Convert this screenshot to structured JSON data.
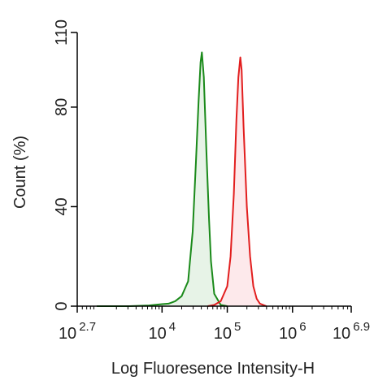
{
  "chart_data": {
    "type": "area",
    "title": "",
    "xlabel": "Log Fluoresence Intensity-H",
    "ylabel": "Count  (%)",
    "x_scale": "log",
    "xlim": [
      501.19,
      7943282.35
    ],
    "ylim": [
      0,
      110
    ],
    "x_ticks": [
      {
        "value": 501.19,
        "base": "10",
        "exp": "2.7"
      },
      {
        "value": 10000,
        "base": "10",
        "exp": "4"
      },
      {
        "value": 100000,
        "base": "10",
        "exp": "5"
      },
      {
        "value": 1000000,
        "base": "10",
        "exp": "6"
      },
      {
        "value": 7943282.35,
        "base": "10",
        "exp": "6.9"
      }
    ],
    "y_ticks": [
      "0",
      "40",
      "80",
      "110"
    ],
    "grid": false,
    "legend": "none",
    "series": [
      {
        "color": "#1a8a1a",
        "fill": "#e3f1e3",
        "points": [
          [
            1000,
            0
          ],
          [
            3162,
            0
          ],
          [
            6310,
            0.3
          ],
          [
            10000,
            0.8
          ],
          [
            12589,
            1
          ],
          [
            15849,
            2
          ],
          [
            19953,
            4
          ],
          [
            25119,
            10
          ],
          [
            29512,
            30
          ],
          [
            33113,
            58
          ],
          [
            36308,
            82
          ],
          [
            38905,
            98
          ],
          [
            40738,
            102
          ],
          [
            43652,
            92
          ],
          [
            47863,
            62
          ],
          [
            52481,
            35
          ],
          [
            56234,
            18
          ],
          [
            63096,
            5
          ],
          [
            79433,
            0.5
          ],
          [
            100000,
            0
          ]
        ]
      },
      {
        "color": "#e21e1e",
        "fill": "#fde5e7",
        "points": [
          [
            50119,
            0
          ],
          [
            63096,
            0.5
          ],
          [
            79433,
            2
          ],
          [
            100000,
            8
          ],
          [
            112202,
            20
          ],
          [
            125893,
            45
          ],
          [
            138038,
            75
          ],
          [
            147911,
            92
          ],
          [
            158489,
            100
          ],
          [
            165959,
            95
          ],
          [
            177828,
            72
          ],
          [
            199526,
            40
          ],
          [
            223872,
            20
          ],
          [
            251189,
            8
          ],
          [
            281838,
            3
          ],
          [
            316228,
            1
          ],
          [
            398107,
            0
          ]
        ]
      }
    ]
  }
}
